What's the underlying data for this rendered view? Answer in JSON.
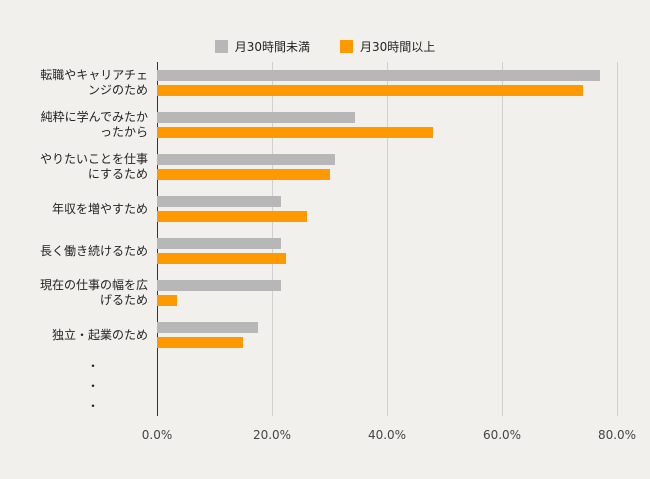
{
  "colors": {
    "background": "#f2f0ed",
    "gridline": "#d2d0ce",
    "axis": "#333333",
    "series_gray": "#b7b7b7",
    "series_orange": "#ff9900"
  },
  "legend": [
    {
      "label": "月30時間未満",
      "color": "#b7b7b7"
    },
    {
      "label": "月30時間以上",
      "color": "#ff9900"
    }
  ],
  "chart_data": {
    "type": "bar",
    "orientation": "horizontal",
    "title": "",
    "xlabel": "",
    "ylabel": "",
    "xlim": [
      0,
      80
    ],
    "xticks": [
      "0.0%",
      "20.0%",
      "40.0%",
      "60.0%",
      "80.0%"
    ],
    "grid": true,
    "legend_position": "top",
    "categories": [
      "転職やキャリアチェンジのため",
      "純粋に学んでみたかったから",
      "やりたいことを仕事にするため",
      "年収を増やすため",
      "長く働き続けるため",
      "現在の仕事の幅を広げるため",
      "独立・起業のため",
      "・",
      "・",
      "・"
    ],
    "series": [
      {
        "name": "月30時間未満",
        "color": "#b7b7b7",
        "values": [
          77,
          34.5,
          31,
          21.5,
          21.5,
          21.5,
          17.5,
          null,
          null,
          null
        ]
      },
      {
        "name": "月30時間以上",
        "color": "#ff9900",
        "values": [
          74,
          48,
          30,
          26,
          22.5,
          3.5,
          15,
          null,
          null,
          null
        ]
      }
    ]
  }
}
